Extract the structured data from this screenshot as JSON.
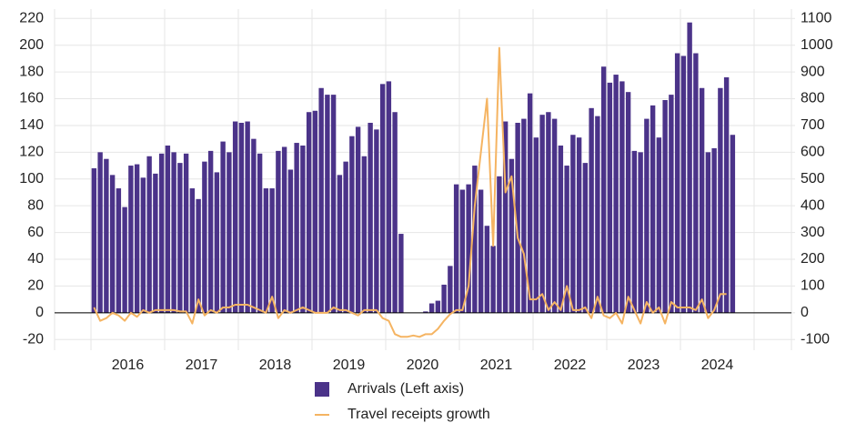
{
  "chart_data": {
    "type": "bar_line",
    "categories": [
      null,
      null,
      null,
      null,
      null,
      null,
      "2016",
      null,
      null,
      null,
      null,
      null,
      null,
      null,
      null,
      null,
      null,
      null,
      "2017",
      null,
      null,
      null,
      null,
      null,
      null,
      null,
      null,
      null,
      null,
      null,
      "2018",
      null,
      null,
      null,
      null,
      null,
      null,
      null,
      null,
      null,
      null,
      null,
      "2019",
      null,
      null,
      null,
      null,
      null,
      null,
      null,
      null,
      null,
      null,
      null,
      "2020",
      null,
      null,
      null,
      null,
      null,
      null,
      null,
      null,
      null,
      null,
      null,
      "2021",
      null,
      null,
      null,
      null,
      null,
      null,
      null,
      null,
      null,
      null,
      null,
      "2022",
      null,
      null,
      null,
      null,
      null,
      null,
      null,
      null,
      null,
      null,
      null,
      "2023",
      null,
      null,
      null,
      null,
      null,
      null,
      null,
      null,
      null,
      null,
      null,
      "2024",
      null,
      null
    ],
    "series": [
      {
        "name": "Arrivals (Left axis)",
        "color": "#4b3389",
        "kind": "bar",
        "values": [
          108,
          120,
          115,
          103,
          93,
          79,
          110,
          111,
          101,
          117,
          104,
          119,
          125,
          120,
          112,
          119,
          93,
          85,
          113,
          121,
          105,
          128,
          120,
          143,
          142,
          143,
          130,
          119,
          93,
          93,
          121,
          124,
          107,
          127,
          125,
          150,
          151,
          168,
          163,
          163,
          103,
          113,
          132,
          139,
          117,
          142,
          137,
          171,
          173,
          150,
          59,
          0,
          0,
          0,
          1,
          7,
          9,
          21,
          35,
          96,
          92,
          96,
          110,
          92,
          65,
          50,
          102,
          143,
          115,
          142,
          145,
          164,
          131,
          148,
          150,
          145,
          125,
          110,
          133,
          131,
          112,
          153,
          147,
          184,
          172,
          178,
          173,
          165,
          121,
          120,
          145,
          155,
          131,
          159,
          163,
          194,
          192,
          217,
          194,
          168,
          120,
          123,
          168,
          176,
          133
        ]
      },
      {
        "name": "Travel receipts growth",
        "color": "#f5b462",
        "kind": "line",
        "axis": "y2",
        "values": [
          20,
          -30,
          -20,
          0,
          -10,
          -30,
          0,
          -15,
          10,
          0,
          10,
          10,
          10,
          10,
          5,
          5,
          -40,
          50,
          -10,
          10,
          0,
          20,
          20,
          30,
          30,
          30,
          20,
          10,
          0,
          60,
          -20,
          10,
          0,
          10,
          20,
          10,
          0,
          0,
          0,
          20,
          10,
          10,
          0,
          -10,
          10,
          10,
          10,
          -20,
          -30,
          -80,
          -90,
          -90,
          -85,
          -90,
          -80,
          -80,
          -60,
          -30,
          -5,
          10,
          10,
          100,
          400,
          600,
          800,
          250,
          990,
          450,
          510,
          280,
          220,
          50,
          50,
          70,
          10,
          40,
          10,
          100,
          10,
          10,
          20,
          -20,
          60,
          -10,
          -20,
          0,
          -40,
          60,
          10,
          -40,
          40,
          0,
          20,
          -40,
          40,
          20,
          20,
          20,
          10,
          50,
          -20,
          10,
          70,
          70,
          null
        ]
      }
    ],
    "ylim": [
      -28,
      227
    ],
    "yticks": [
      -20,
      0,
      20,
      40,
      60,
      80,
      100,
      120,
      140,
      160,
      180,
      200,
      220
    ],
    "y2lim": [
      -140,
      1135
    ],
    "y2ticks": [
      -100,
      0,
      100,
      200,
      300,
      400,
      500,
      600,
      700,
      800,
      900,
      1000,
      1100
    ],
    "grid": true,
    "legend": "bottom"
  }
}
